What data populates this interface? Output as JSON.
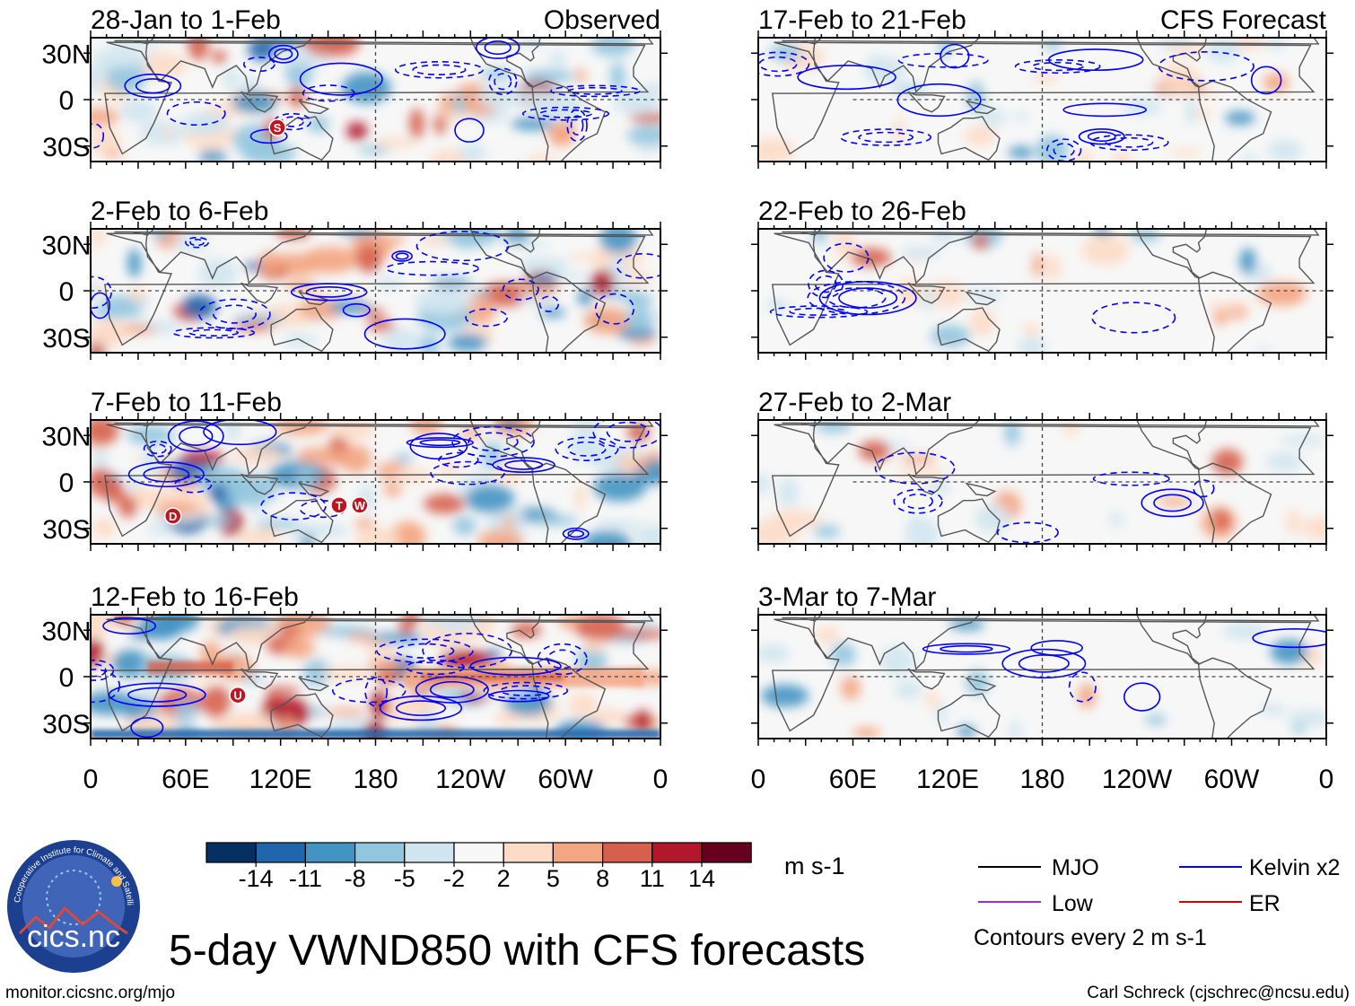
{
  "chart_data": {
    "type": "heatmap",
    "title": "5-day VWND850 with CFS forecasts",
    "variable": "VWND850",
    "units": "m s-1",
    "x_ticks": [
      "0",
      "60E",
      "120E",
      "180",
      "120W",
      "60W",
      "0"
    ],
    "y_ticks": [
      "30N",
      "0",
      "30S"
    ],
    "ylim": [
      -40,
      40
    ],
    "colorbar_levels": [
      "-14",
      "-11",
      "-8",
      "-5",
      "-2",
      "2",
      "5",
      "8",
      "11",
      "14"
    ],
    "colorbar_colors": [
      "#053061",
      "#2166ac",
      "#4393c3",
      "#92c5de",
      "#d1e5f0",
      "#f7f7f7",
      "#fddbc7",
      "#f4a582",
      "#d6604d",
      "#b2182b",
      "#67001f"
    ],
    "observed_label": "Observed",
    "forecast_label": "CFS Forecast",
    "panels": [
      {
        "period": "28-Jan to 1-Feb",
        "column": "observed"
      },
      {
        "period": "2-Feb to 6-Feb",
        "column": "observed"
      },
      {
        "period": "7-Feb to 11-Feb",
        "column": "observed"
      },
      {
        "period": "12-Feb to 16-Feb",
        "column": "observed"
      },
      {
        "period": "17-Feb to 21-Feb",
        "column": "forecast"
      },
      {
        "period": "22-Feb to 26-Feb",
        "column": "forecast"
      },
      {
        "period": "27-Feb to 2-Mar",
        "column": "forecast"
      },
      {
        "period": "3-Mar to 7-Mar",
        "column": "forecast"
      }
    ],
    "markers": [
      {
        "panel": 0,
        "label": "S",
        "lon": 118,
        "lat": -18
      },
      {
        "panel": 2,
        "label": "D",
        "lon": 52,
        "lat": -22
      },
      {
        "panel": 2,
        "label": "T",
        "lon": 157,
        "lat": -15
      },
      {
        "panel": 2,
        "label": "W",
        "lon": 170,
        "lat": -15
      },
      {
        "panel": 3,
        "label": "U",
        "lon": 93,
        "lat": -12
      }
    ],
    "legend": {
      "items": [
        {
          "label": "MJO",
          "color": "#000000"
        },
        {
          "label": "Kelvin x2",
          "color": "#0000ff"
        },
        {
          "label": "Low",
          "color": "#9932cc"
        },
        {
          "label": "ER",
          "color": "#cc0000"
        }
      ],
      "note": "Contours every 2 m s-1"
    }
  },
  "footer": {
    "logo_text": "cics.nc",
    "logo_ring_text": "Cooperative Institute for Climate and Satellites",
    "url": "monitor.cicsnc.org/mjo",
    "credit": "Carl Schreck (cjschrec@ncsu.edu)"
  }
}
